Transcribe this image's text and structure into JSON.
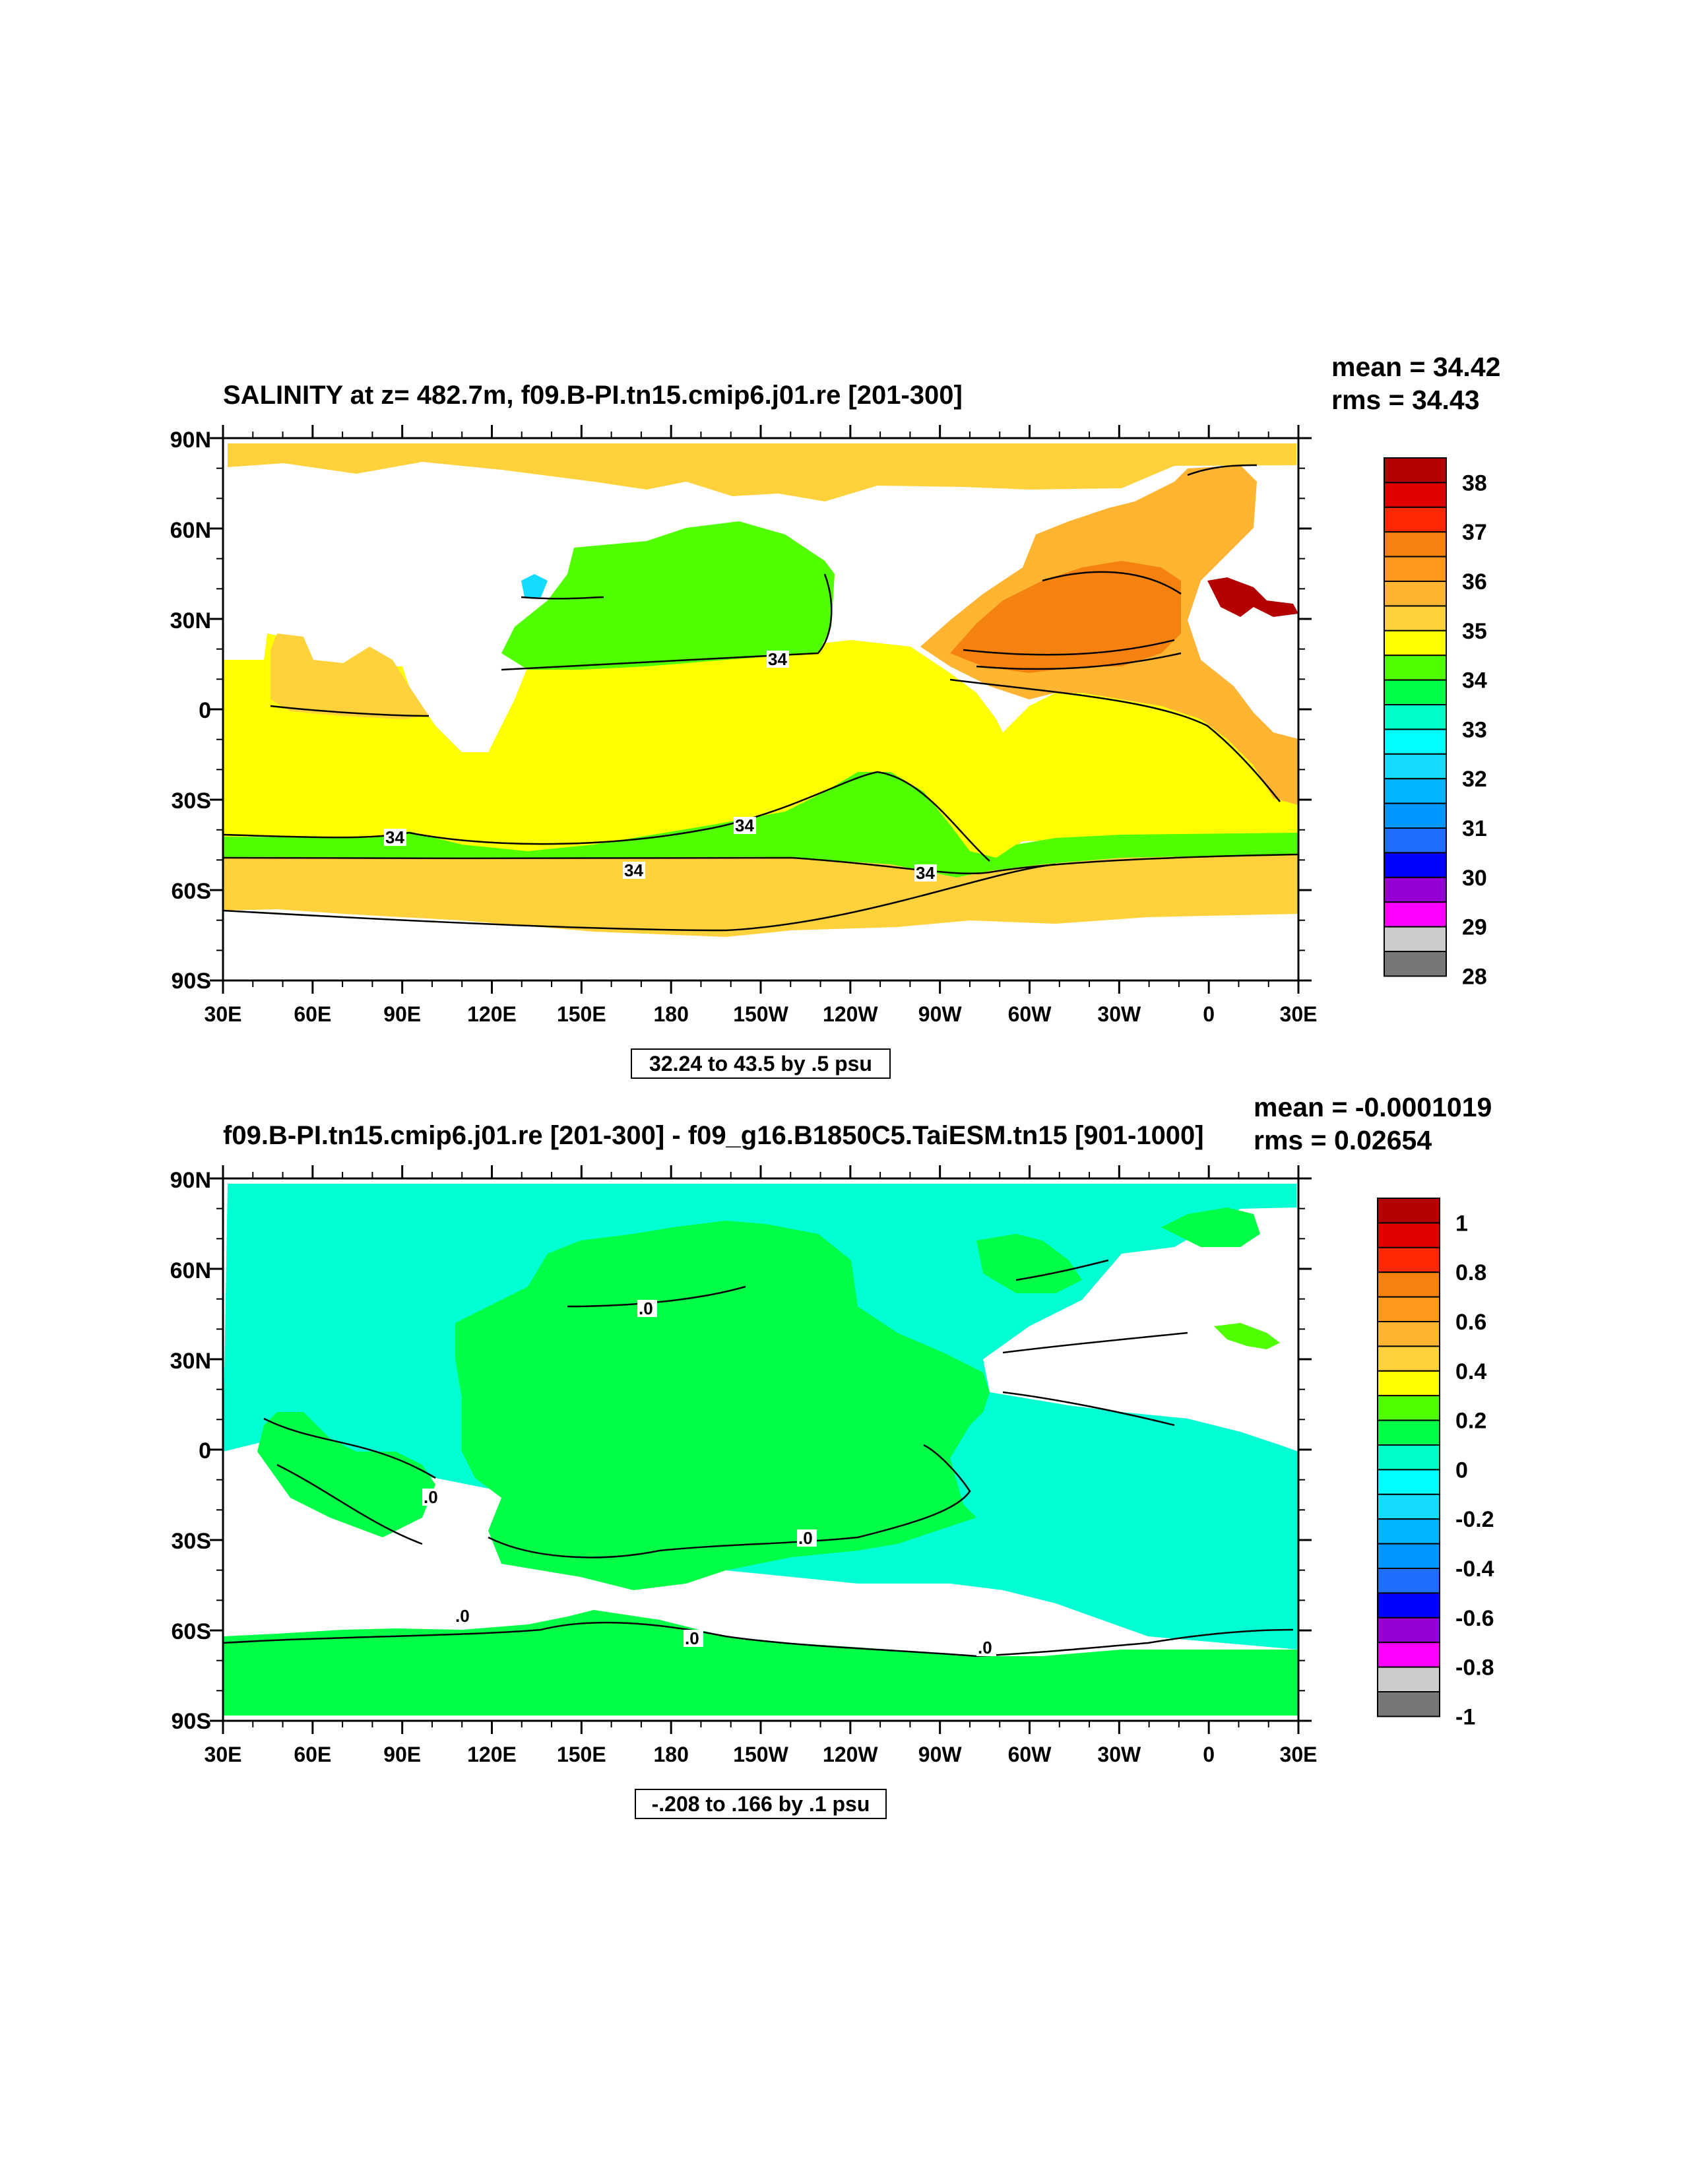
{
  "panels": [
    {
      "title": "SALINITY at z= 482.7m, f09.B-PI.tn15.cmip6.j01.re [201-300]",
      "stats": {
        "mean": "mean = 34.42",
        "rms": "rms = 34.43"
      },
      "contour_info": "32.24 to 43.5 by .5 psu",
      "contour_labels": [
        "34",
        "34",
        "34",
        "34",
        "34"
      ],
      "colorbar": {
        "labels": [
          "38",
          "37",
          "36",
          "35",
          "34",
          "33",
          "32",
          "31",
          "30",
          "29",
          "28"
        ],
        "colors": [
          "#b40000",
          "#e10000",
          "#ff2800",
          "#f5820f",
          "#ff9a1e",
          "#ffb432",
          "#ffd23c",
          "#ffff00",
          "#50ff00",
          "#00ff46",
          "#00ffc8",
          "#00ffff",
          "#14dcff",
          "#00b4ff",
          "#0096ff",
          "#1e6eff",
          "#0000ff",
          "#9600d2",
          "#ff00ff",
          "#cccccc",
          "#777777"
        ]
      },
      "map_colors": {
        "arctic": "#ffd23c",
        "main": "#ffff00",
        "pacific_fresh": "#50ff00",
        "southern_band": "#50ff00",
        "southern_ring": "#ffd23c",
        "n_atlantic": "#f5820f",
        "n_atlantic_high": "#ffb432",
        "med": "#b40000",
        "okhotsk": "#14dcff"
      }
    },
    {
      "title": "f09.B-PI.tn15.cmip6.j01.re [201-300] - f09_g16.B1850C5.TaiESM.tn15 [901-1000]",
      "stats": {
        "mean": "mean = -0.0001019",
        "rms": "rms = 0.02654"
      },
      "contour_info": "-.208 to .166 by .1 psu",
      "contour_labels": [
        ".0",
        ".0",
        ".0",
        ".0",
        ".0",
        ".0"
      ],
      "colorbar": {
        "labels": [
          "1",
          "0.8",
          "0.6",
          "0.4",
          "0.2",
          "0",
          "-0.2",
          "-0.4",
          "-0.6",
          "-0.8",
          "-1"
        ],
        "colors": [
          "#b40000",
          "#e10000",
          "#ff2800",
          "#f5820f",
          "#ff9a1e",
          "#ffb432",
          "#ffd23c",
          "#ffff00",
          "#50ff00",
          "#00ff46",
          "#00ffc8",
          "#00ffff",
          "#14dcff",
          "#00b4ff",
          "#0096ff",
          "#1e6eff",
          "#0000ff",
          "#9600d2",
          "#ff00ff",
          "#cccccc",
          "#777777"
        ]
      },
      "map_colors": {
        "cyan": "#00ffd2",
        "green": "#00ff46",
        "med": "#50ff00"
      }
    }
  ],
  "axes": {
    "lat_labels": [
      "90N",
      "60N",
      "30N",
      "0",
      "30S",
      "60S",
      "90S"
    ],
    "lon_labels": [
      "30E",
      "60E",
      "90E",
      "120E",
      "150E",
      "180",
      "150W",
      "120W",
      "90W",
      "60W",
      "30W",
      "0",
      "30E"
    ]
  }
}
